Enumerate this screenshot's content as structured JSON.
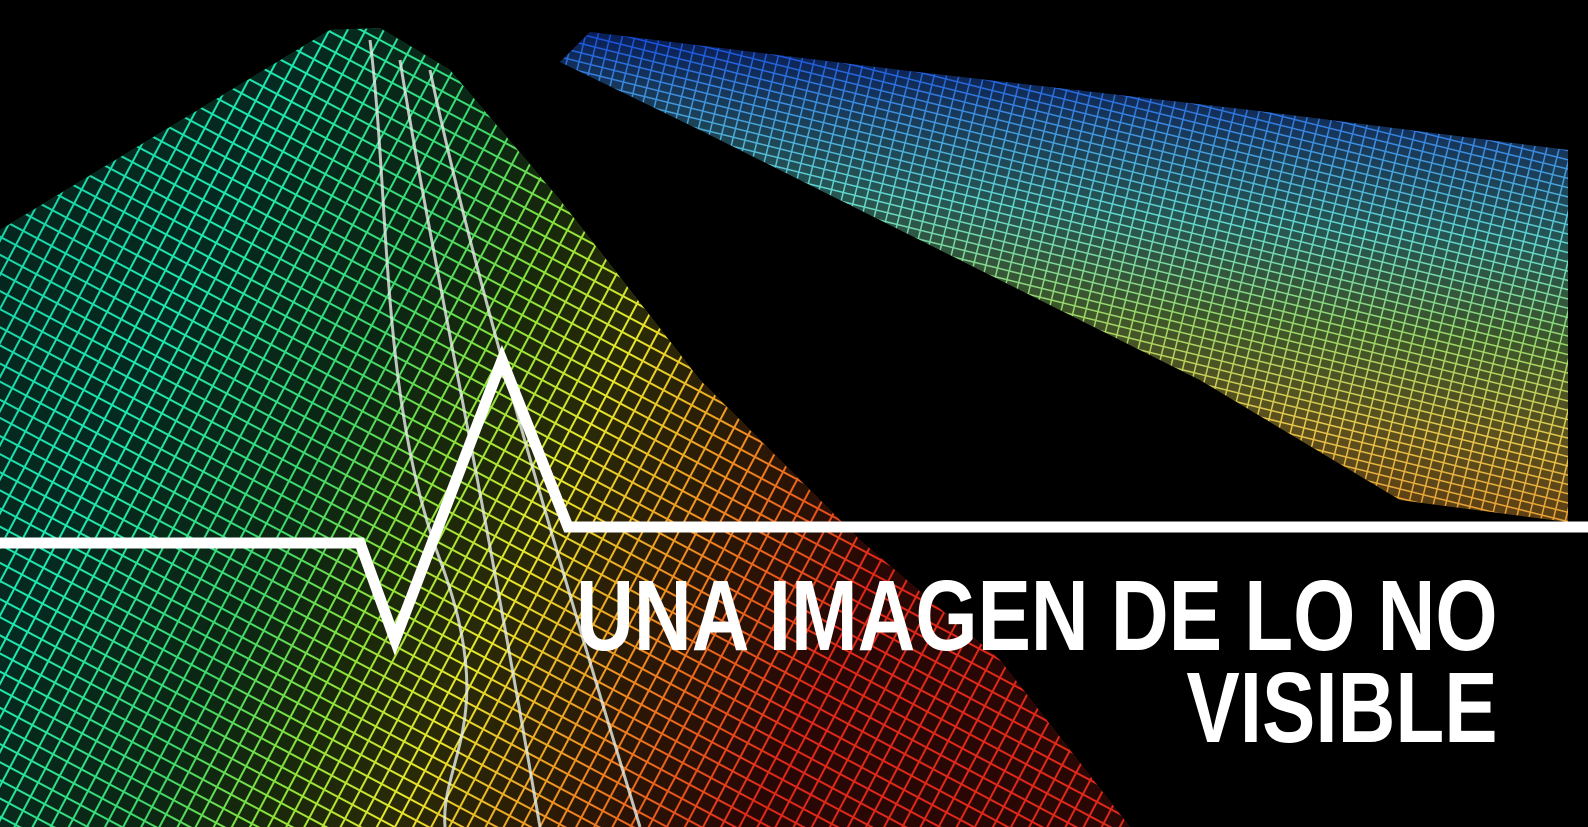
{
  "title": {
    "lines": [
      "UNA IMAGEN DE LO NO",
      "VISIBLE"
    ]
  }
}
